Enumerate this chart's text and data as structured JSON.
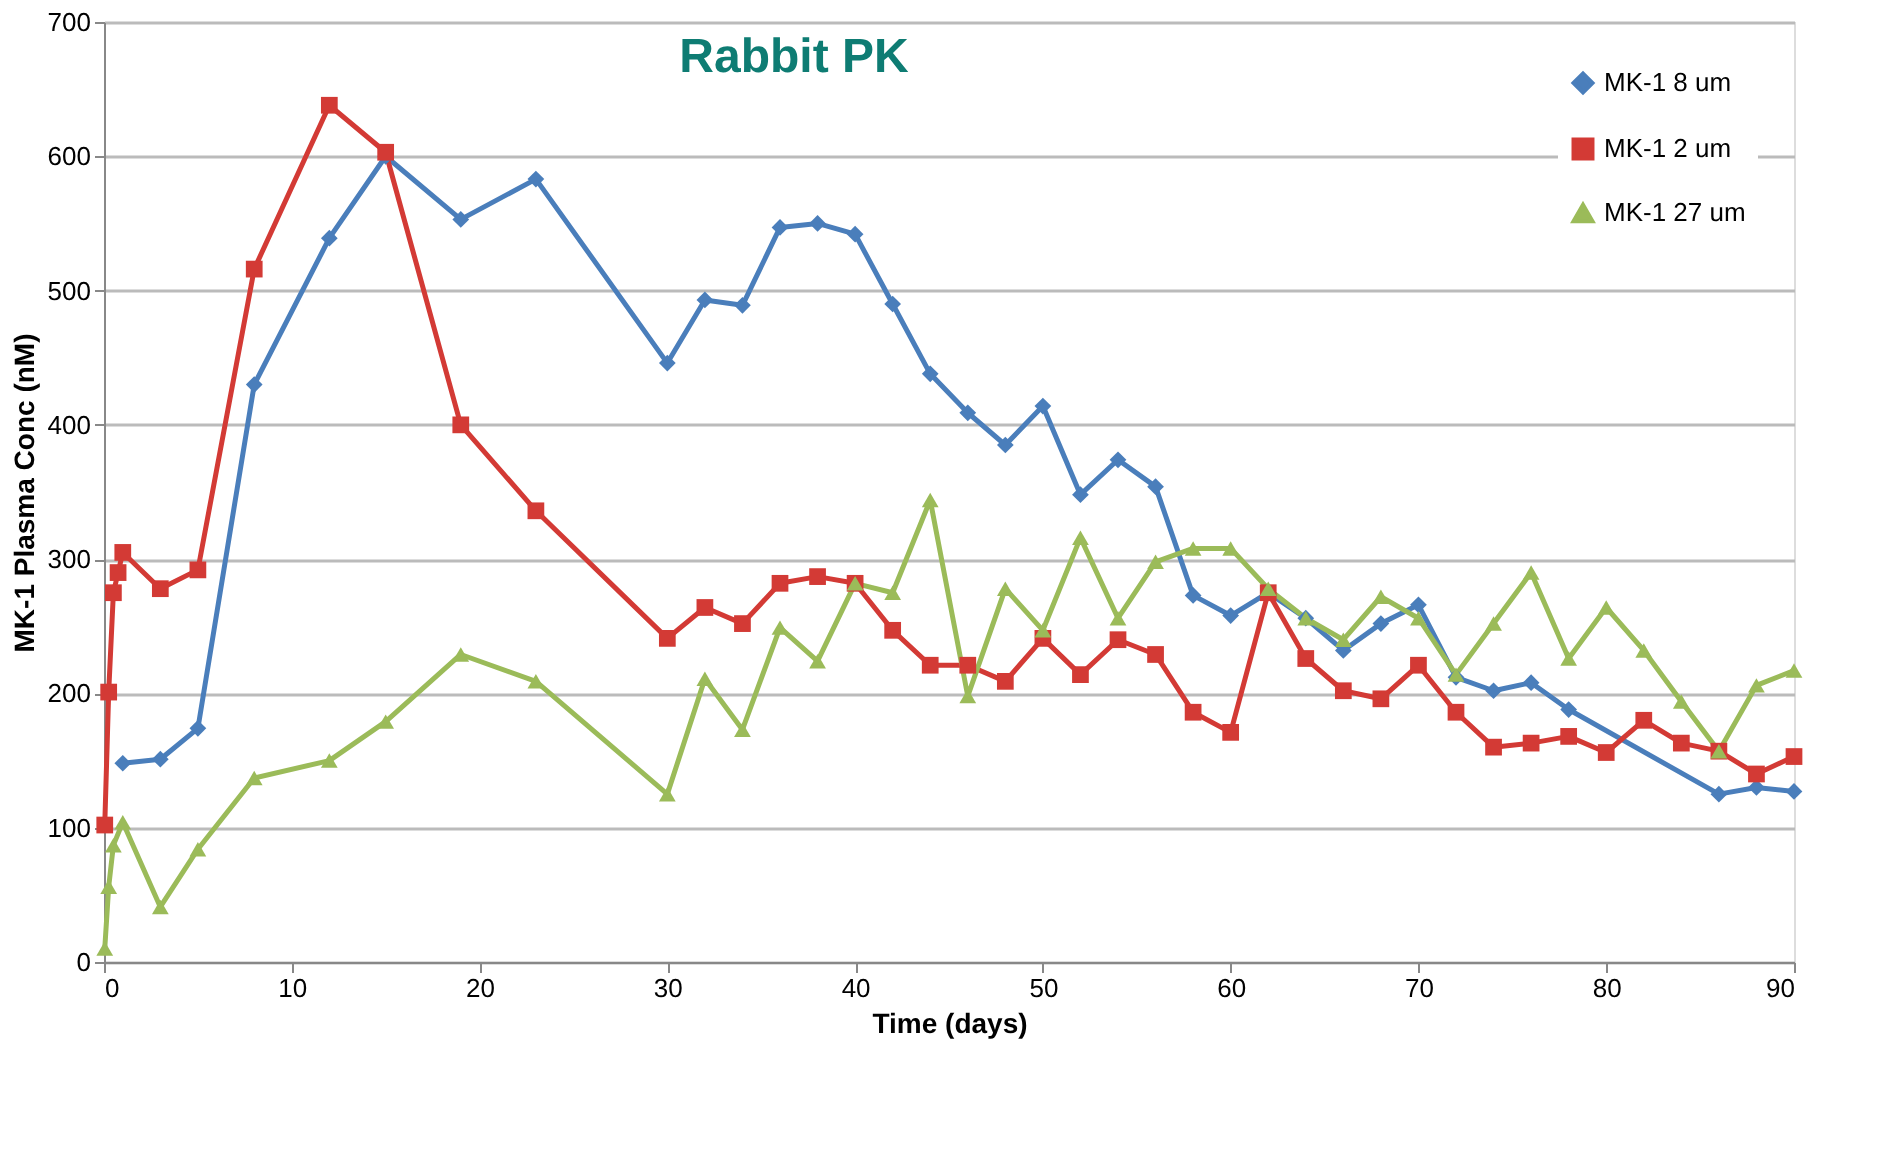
{
  "chart_data": {
    "type": "line",
    "title": "Rabbit PK",
    "xlabel": "Time (days)",
    "ylabel": "MK-1 Plasma Conc (nM)",
    "xlim": [
      0,
      90
    ],
    "xticks": [
      0,
      10,
      20,
      30,
      40,
      50,
      60,
      70,
      80,
      90
    ],
    "ylim": [
      0,
      700
    ],
    "yticks": [
      0,
      100,
      200,
      300,
      400,
      500,
      600,
      700
    ],
    "grid": "y",
    "legend": "top right",
    "line_style": "solid",
    "series": [
      {
        "name": "MK-1 8 um",
        "color": "#4a7ebb",
        "marker": "diamond",
        "x": [
          1,
          3,
          5,
          8,
          12,
          15,
          19,
          23,
          30,
          32,
          34,
          36,
          38,
          40,
          42,
          44,
          46,
          48,
          50,
          52,
          54,
          56,
          58,
          60,
          62,
          64,
          66,
          68,
          70,
          72,
          74,
          76,
          78,
          86,
          88,
          90
        ],
        "values": [
          148,
          151,
          174,
          430,
          539,
          600,
          553,
          583,
          446,
          493,
          489,
          547,
          550,
          542,
          490,
          438,
          409,
          385,
          414,
          348,
          374,
          354,
          273,
          258,
          275,
          256,
          232,
          252,
          266,
          212,
          202,
          208,
          188,
          125,
          130,
          127
        ]
      },
      {
        "name": "MK-1 2 um",
        "color": "#d33a35",
        "marker": "square",
        "x": [
          0.04,
          0.25,
          0.5,
          0.75,
          1,
          3,
          5,
          8,
          12,
          15,
          19,
          23,
          30,
          32,
          34,
          36,
          38,
          40,
          42,
          44,
          46,
          48,
          50,
          52,
          54,
          56,
          58,
          60,
          62,
          64,
          66,
          68,
          70,
          72,
          74,
          76,
          78,
          80,
          82,
          84,
          86,
          88,
          90
        ],
        "values": [
          102,
          201,
          275,
          290,
          305,
          278,
          292,
          516,
          638,
          603,
          400,
          336,
          241,
          264,
          252,
          282,
          287,
          282,
          247,
          221,
          221,
          209,
          241,
          214,
          240,
          229,
          186,
          171,
          275,
          226,
          202,
          196,
          221,
          186,
          160,
          163,
          168,
          156,
          180,
          163,
          157,
          140,
          153
        ]
      },
      {
        "name": "MK-1 27 um",
        "color": "#9bbb59",
        "marker": "triangle",
        "x": [
          0.04,
          0.25,
          0.5,
          1,
          3,
          5,
          8,
          12,
          15,
          19,
          23,
          30,
          32,
          34,
          36,
          38,
          40,
          42,
          44,
          46,
          48,
          50,
          52,
          54,
          56,
          58,
          60,
          62,
          64,
          66,
          68,
          70,
          72,
          74,
          76,
          78,
          80,
          82,
          84,
          86,
          88,
          90
        ],
        "values": [
          10,
          56,
          87,
          104,
          41,
          84,
          137,
          150,
          179,
          229,
          209,
          125,
          211,
          173,
          249,
          224,
          282,
          275,
          344,
          198,
          278,
          247,
          316,
          256,
          298,
          308,
          308,
          278,
          256,
          240,
          272,
          256,
          214,
          252,
          290,
          226,
          264,
          232,
          194,
          157,
          206,
          217
        ]
      }
    ]
  }
}
